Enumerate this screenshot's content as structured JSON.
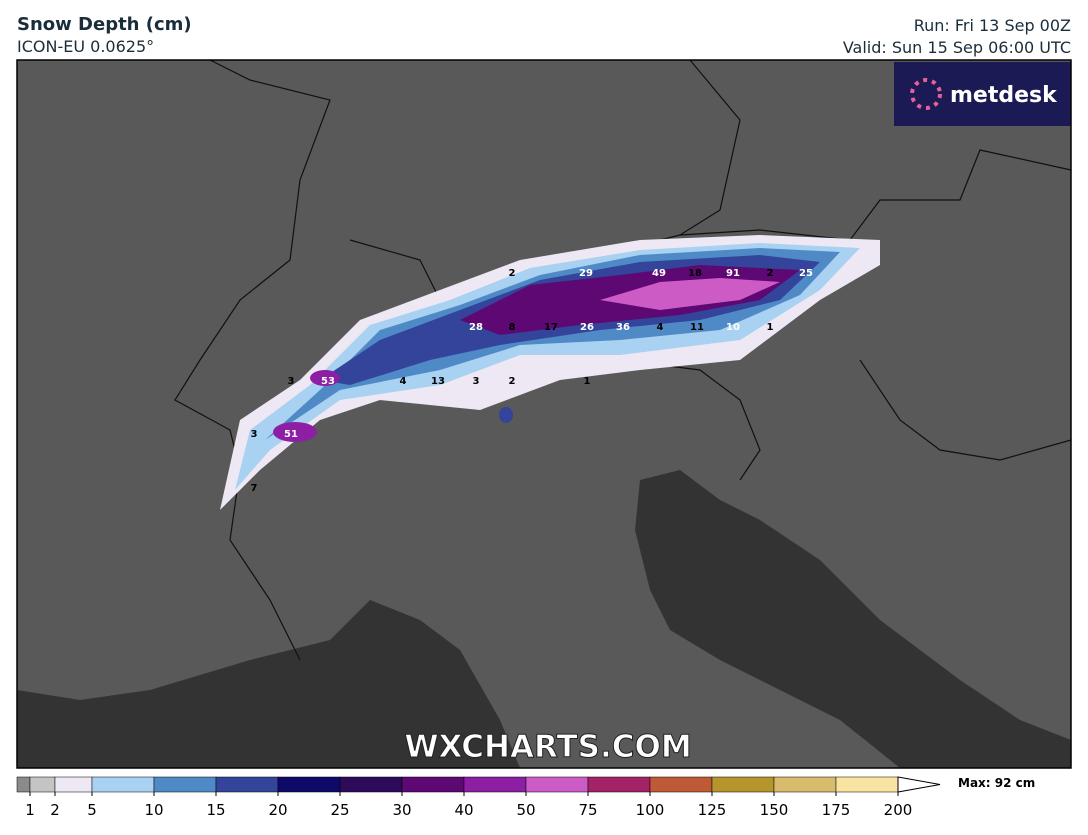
{
  "header": {
    "title": "Snow Depth (cm)",
    "model": "ICON-EU 0.0625°",
    "run": "Run: Fri 13 Sep 00Z",
    "valid": "Valid: Sun 15 Sep 06:00 UTC"
  },
  "logo": "metdesk",
  "watermark": "WXCHARTS.COM",
  "map_labels": [
    2,
    29,
    49,
    18,
    91,
    2,
    25,
    28,
    8,
    17,
    26,
    36,
    4,
    11,
    10,
    1,
    3,
    53,
    4,
    13,
    3,
    2,
    1,
    3,
    51,
    7
  ],
  "legend": {
    "ticks": [
      1,
      2,
      5,
      10,
      15,
      20,
      25,
      30,
      40,
      50,
      75,
      100,
      125,
      150,
      175,
      200
    ],
    "colors": [
      "#8a8a8a",
      "#c4c4c4",
      "#eee8f4",
      "#a9d1f1",
      "#4f8ac6",
      "#33449a",
      "#0d0a6a",
      "#2d0b5a",
      "#5e0874",
      "#8d1fa4",
      "#cd5bc6",
      "#a42266",
      "#bf5a36",
      "#b5952c",
      "#d8bb6c",
      "#f8e3a3"
    ],
    "max": "Max: 92 cm"
  }
}
